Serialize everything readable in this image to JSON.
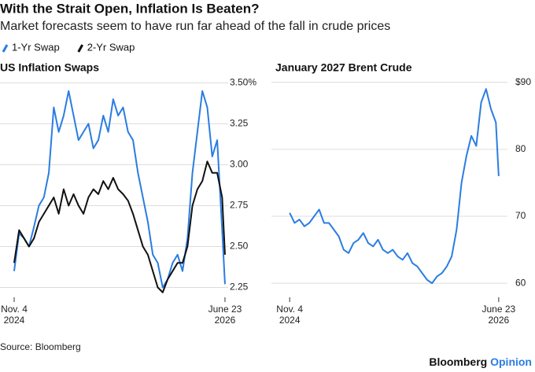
{
  "title": "With the Strait Open, Inflation Is Beaten?",
  "subtitle": "Market forecasts seem to have run far ahead of the fall in crude prices",
  "source": "Source: Bloomberg",
  "brand": [
    "Bloomberg",
    "Opinion"
  ],
  "chart_data": [
    {
      "type": "line",
      "title": "US Inflation Swaps",
      "x": [
        "2024-11-04",
        "2024-11-18",
        "2024-12-02",
        "2024-12-16",
        "2024-12-30",
        "2025-01-13",
        "2025-01-27",
        "2025-02-10",
        "2025-02-24",
        "2025-03-10",
        "2025-03-24",
        "2025-04-07",
        "2025-04-21",
        "2025-05-05",
        "2025-05-19",
        "2025-06-02",
        "2025-06-16",
        "2025-06-30",
        "2025-07-14",
        "2025-07-28",
        "2025-08-11",
        "2025-08-25",
        "2025-09-08",
        "2025-09-22",
        "2025-10-06",
        "2025-10-20",
        "2025-11-03",
        "2025-11-17",
        "2025-12-01",
        "2025-12-15",
        "2025-12-29",
        "2026-01-12",
        "2026-01-26",
        "2026-02-09",
        "2026-02-23",
        "2026-03-09",
        "2026-03-23",
        "2026-04-06",
        "2026-04-20",
        "2026-05-04",
        "2026-05-18",
        "2026-06-01",
        "2026-06-15",
        "2026-06-23"
      ],
      "series": [
        {
          "name": "1-Yr Swap",
          "color": "#2a7de1",
          "values": [
            2.35,
            2.58,
            2.55,
            2.5,
            2.62,
            2.75,
            2.8,
            2.95,
            3.35,
            3.2,
            3.3,
            3.45,
            3.3,
            3.15,
            3.2,
            3.25,
            3.1,
            3.15,
            3.3,
            3.2,
            3.4,
            3.3,
            3.35,
            3.2,
            3.15,
            2.95,
            2.8,
            2.65,
            2.45,
            2.4,
            2.25,
            2.3,
            2.4,
            2.45,
            2.35,
            2.55,
            2.95,
            3.2,
            3.45,
            3.35,
            3.05,
            3.15,
            2.6,
            2.27
          ]
        },
        {
          "name": "2-Yr Swap",
          "color": "#111111",
          "values": [
            2.4,
            2.6,
            2.55,
            2.5,
            2.55,
            2.65,
            2.7,
            2.75,
            2.8,
            2.7,
            2.85,
            2.75,
            2.82,
            2.75,
            2.7,
            2.8,
            2.85,
            2.82,
            2.9,
            2.85,
            2.92,
            2.85,
            2.82,
            2.78,
            2.7,
            2.6,
            2.5,
            2.45,
            2.35,
            2.25,
            2.22,
            2.3,
            2.35,
            2.4,
            2.4,
            2.5,
            2.75,
            2.85,
            2.9,
            3.02,
            2.95,
            2.95,
            2.8,
            2.45
          ]
        }
      ],
      "xlim": [
        "2024-09-25",
        "2026-07-02"
      ],
      "xticks": [
        {
          "value": "2024-11-04",
          "label": [
            "Nov. 4",
            "2024"
          ]
        },
        {
          "value": "2026-06-23",
          "label": [
            "June 23",
            "2026"
          ]
        }
      ],
      "ylim": [
        2.19,
        3.54
      ],
      "yticks": [
        {
          "value": 3.5,
          "label": "3.50%"
        },
        3.25,
        {
          "value": 3,
          "label": "3.00"
        },
        2.75,
        {
          "value": 2.5,
          "label": "2.50"
        },
        2.25
      ],
      "grid": true
    },
    {
      "type": "line",
      "title": "January 2027 Brent Crude",
      "x": [
        "2024-11-04",
        "2024-11-18",
        "2024-12-02",
        "2024-12-16",
        "2024-12-30",
        "2025-01-13",
        "2025-01-27",
        "2025-02-10",
        "2025-02-24",
        "2025-03-10",
        "2025-03-24",
        "2025-04-07",
        "2025-04-21",
        "2025-05-05",
        "2025-05-19",
        "2025-06-02",
        "2025-06-16",
        "2025-06-30",
        "2025-07-14",
        "2025-07-28",
        "2025-08-11",
        "2025-08-25",
        "2025-09-08",
        "2025-09-22",
        "2025-10-06",
        "2025-10-20",
        "2025-11-03",
        "2025-11-17",
        "2025-12-01",
        "2025-12-15",
        "2025-12-29",
        "2026-01-12",
        "2026-01-26",
        "2026-02-09",
        "2026-02-23",
        "2026-03-09",
        "2026-03-23",
        "2026-04-06",
        "2026-04-20",
        "2026-05-04",
        "2026-05-18",
        "2026-06-01",
        "2026-06-15",
        "2026-06-23"
      ],
      "color": "#2a7de1",
      "values": [
        70.5,
        69,
        69.5,
        68.5,
        69,
        70,
        71,
        69,
        69,
        68,
        67,
        65,
        64.5,
        66,
        66.5,
        67.5,
        66,
        65.5,
        66.5,
        65,
        64.5,
        65,
        64,
        63.5,
        64.5,
        63,
        62.5,
        61.5,
        60.5,
        60,
        61,
        61.5,
        62.5,
        64,
        68,
        75,
        79,
        82,
        80.5,
        87,
        89,
        86,
        84,
        76
      ],
      "xlim": [
        "2024-09-13",
        "2026-07-18"
      ],
      "xticks": [
        {
          "value": "2024-11-04",
          "label": [
            "Nov. 4",
            "2024"
          ]
        },
        {
          "value": "2026-06-23",
          "label": [
            "June 23",
            "2026"
          ]
        }
      ],
      "ylim": [
        57.9,
        90.9
      ],
      "yticks": [
        {
          "value": 90,
          "label": "$90"
        },
        80,
        70,
        60
      ],
      "grid": true
    }
  ]
}
